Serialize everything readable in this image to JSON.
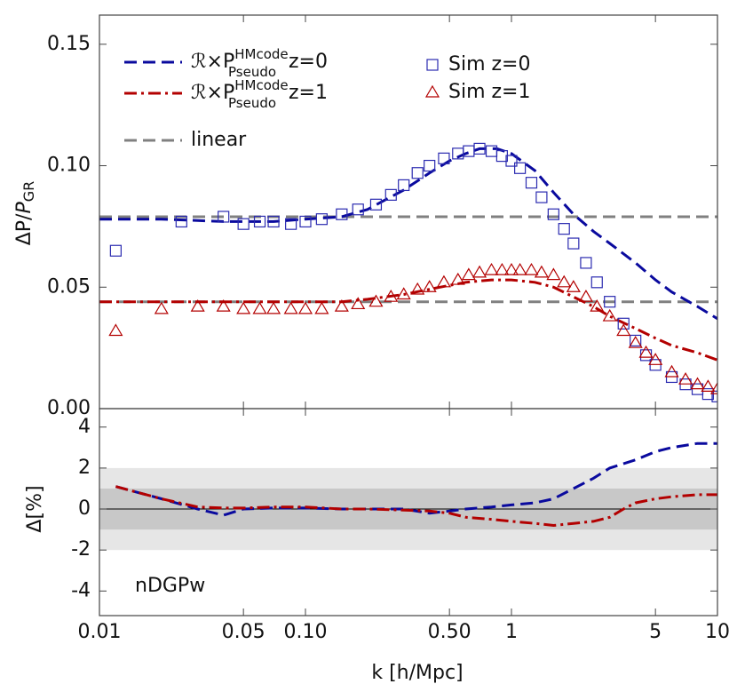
{
  "chart_data": [
    {
      "type": "line",
      "ylabel": {
        "text": "ΔP/",
        "italic": "P",
        "sub": "GR"
      },
      "xlim": [
        0.01,
        10
      ],
      "ylim": [
        0,
        0.162
      ],
      "yticks": [
        {
          "value": 0,
          "label": "0.00"
        },
        0.05,
        {
          "value": 0.1,
          "label": "0.10"
        },
        0.15
      ],
      "series": [
        {
          "style": "dashed",
          "color": "#808080",
          "name": "linear",
          "x": [
            0.01,
            10
          ],
          "values": [
            0.079,
            0.079
          ]
        },
        {
          "style": "dashed",
          "color": "#808080",
          "x": [
            0.01,
            10
          ],
          "values": [
            0.044,
            0.044
          ]
        },
        {
          "style": "dashed",
          "color": "#0a0a9e",
          "legend": {
            "base": "ℛ×P",
            "sup": "HMcode",
            "sub": "Pseudo",
            "tail": "z=0"
          },
          "x": [
            0.01,
            0.02,
            0.04,
            0.07,
            0.1,
            0.15,
            0.2,
            0.3,
            0.4,
            0.5,
            0.6,
            0.7,
            0.85,
            1,
            1.3,
            1.6,
            2,
            2.5,
            3,
            4,
            5,
            6,
            8,
            10
          ],
          "values": [
            0.078,
            0.078,
            0.077,
            0.077,
            0.078,
            0.079,
            0.082,
            0.09,
            0.097,
            0.102,
            0.105,
            0.107,
            0.107,
            0.105,
            0.098,
            0.089,
            0.08,
            0.073,
            0.068,
            0.06,
            0.053,
            0.048,
            0.042,
            0.037
          ]
        },
        {
          "style": "dashdot",
          "color": "#b30000",
          "legend": {
            "base": "ℛ×P",
            "sup": "HMcode",
            "sub": "Pseudo",
            "tail": "z=1"
          },
          "x": [
            0.01,
            0.02,
            0.05,
            0.1,
            0.15,
            0.2,
            0.3,
            0.45,
            0.6,
            0.8,
            1,
            1.3,
            1.6,
            2,
            2.5,
            3,
            4,
            5,
            6,
            8,
            10
          ],
          "values": [
            0.044,
            0.044,
            0.044,
            0.044,
            0.044,
            0.045,
            0.047,
            0.05,
            0.052,
            0.053,
            0.053,
            0.052,
            0.05,
            0.046,
            0.042,
            0.038,
            0.033,
            0.029,
            0.026,
            0.023,
            0.02
          ]
        },
        {
          "style": "square",
          "color": "#2b2bb0",
          "name": "Sim z=0",
          "x": [
            0.012,
            0.025,
            0.04,
            0.05,
            0.06,
            0.07,
            0.085,
            0.1,
            0.12,
            0.15,
            0.18,
            0.22,
            0.26,
            0.3,
            0.35,
            0.4,
            0.47,
            0.55,
            0.62,
            0.7,
            0.8,
            0.9,
            1,
            1.1,
            1.25,
            1.4,
            1.6,
            1.8,
            2,
            2.3,
            2.6,
            3,
            3.5,
            4,
            4.5,
            5,
            6,
            7,
            8,
            9,
            10
          ],
          "values": [
            0.065,
            0.077,
            0.079,
            0.076,
            0.077,
            0.077,
            0.076,
            0.077,
            0.078,
            0.08,
            0.082,
            0.084,
            0.088,
            0.092,
            0.097,
            0.1,
            0.103,
            0.105,
            0.106,
            0.107,
            0.106,
            0.104,
            0.102,
            0.099,
            0.093,
            0.087,
            0.08,
            0.074,
            0.068,
            0.06,
            0.052,
            0.044,
            0.035,
            0.028,
            0.022,
            0.018,
            0.013,
            0.01,
            0.008,
            0.006,
            0.005
          ]
        },
        {
          "style": "triangle",
          "color": "#b30000",
          "name": "Sim z=1",
          "x": [
            0.012,
            0.02,
            0.03,
            0.04,
            0.05,
            0.06,
            0.07,
            0.085,
            0.1,
            0.12,
            0.15,
            0.18,
            0.22,
            0.26,
            0.3,
            0.35,
            0.4,
            0.47,
            0.55,
            0.62,
            0.7,
            0.8,
            0.9,
            1,
            1.1,
            1.25,
            1.4,
            1.6,
            1.8,
            2,
            2.3,
            2.6,
            3,
            3.5,
            4,
            4.5,
            5,
            6,
            7,
            8,
            9,
            10
          ],
          "values": [
            0.032,
            0.041,
            0.042,
            0.042,
            0.041,
            0.041,
            0.041,
            0.041,
            0.041,
            0.041,
            0.042,
            0.043,
            0.044,
            0.046,
            0.047,
            0.049,
            0.05,
            0.052,
            0.053,
            0.055,
            0.056,
            0.057,
            0.057,
            0.057,
            0.057,
            0.057,
            0.056,
            0.055,
            0.052,
            0.05,
            0.046,
            0.042,
            0.038,
            0.032,
            0.027,
            0.023,
            0.02,
            0.015,
            0.012,
            0.01,
            0.009,
            0.008
          ]
        }
      ]
    },
    {
      "type": "line",
      "ylabel": "Δ[%]",
      "xlabel": "k [h/Mpc]",
      "annotation": "nDGPw",
      "xlim": [
        0.01,
        10
      ],
      "ylim": [
        -5.2,
        4.9
      ],
      "xticks": [
        0.01,
        0.05,
        {
          "value": 0.1,
          "label": "0.10"
        },
        {
          "value": 0.5,
          "label": "0.50"
        },
        1,
        5,
        10
      ],
      "yticks": [
        -4,
        -2,
        0,
        2,
        4
      ],
      "bands": [
        {
          "lower": -2,
          "upper": 2,
          "color": "#e6e6e6"
        },
        {
          "lower": -1,
          "upper": 1,
          "color": "#c8c8c8"
        }
      ],
      "series": [
        {
          "style": "dashed",
          "color": "#0a0a9e",
          "x": [
            0.012,
            0.02,
            0.03,
            0.04,
            0.05,
            0.07,
            0.1,
            0.15,
            0.2,
            0.3,
            0.4,
            0.5,
            0.6,
            0.8,
            1,
            1.3,
            1.6,
            2,
            2.5,
            3,
            4,
            5,
            6,
            8,
            10
          ],
          "values": [
            1.1,
            0.5,
            0.0,
            -0.3,
            0.0,
            0.05,
            0.05,
            0.0,
            0.0,
            0.0,
            -0.2,
            -0.1,
            0.0,
            0.1,
            0.2,
            0.3,
            0.5,
            1.0,
            1.5,
            2.0,
            2.4,
            2.8,
            3.0,
            3.2,
            3.2
          ]
        },
        {
          "style": "dashdot",
          "color": "#b30000",
          "x": [
            0.012,
            0.02,
            0.03,
            0.04,
            0.05,
            0.07,
            0.1,
            0.15,
            0.2,
            0.3,
            0.4,
            0.5,
            0.6,
            0.8,
            1,
            1.3,
            1.6,
            2,
            2.5,
            3,
            3.5,
            4,
            5,
            6,
            8,
            10
          ],
          "values": [
            1.1,
            0.5,
            0.1,
            0.05,
            0.05,
            0.1,
            0.1,
            0.0,
            0.0,
            -0.05,
            -0.1,
            -0.2,
            -0.4,
            -0.5,
            -0.6,
            -0.7,
            -0.8,
            -0.7,
            -0.6,
            -0.4,
            0.0,
            0.3,
            0.5,
            0.6,
            0.7,
            0.7
          ]
        }
      ]
    }
  ]
}
